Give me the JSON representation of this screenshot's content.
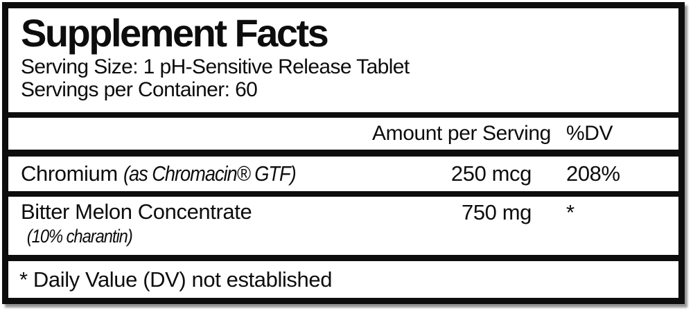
{
  "label": {
    "title": "Supplement Facts",
    "serving_size": "Serving Size: 1 pH-Sensitive Release Tablet",
    "servings_per_container": "Servings per Container: 60",
    "columns": {
      "amount": "Amount per Serving",
      "dv": "%DV"
    },
    "rows": [
      {
        "name": "Chromium",
        "note": "(as Chromacin® GTF)",
        "amount": "250 mcg",
        "dv": "208%"
      },
      {
        "name": "Bitter Melon Concentrate",
        "note": "(10% charantin)",
        "amount": "750 mg",
        "dv": "*"
      }
    ],
    "footnote": "* Daily Value (DV) not established",
    "colors": {
      "ink": "#0d0d0d",
      "background": "#ffffff"
    }
  }
}
